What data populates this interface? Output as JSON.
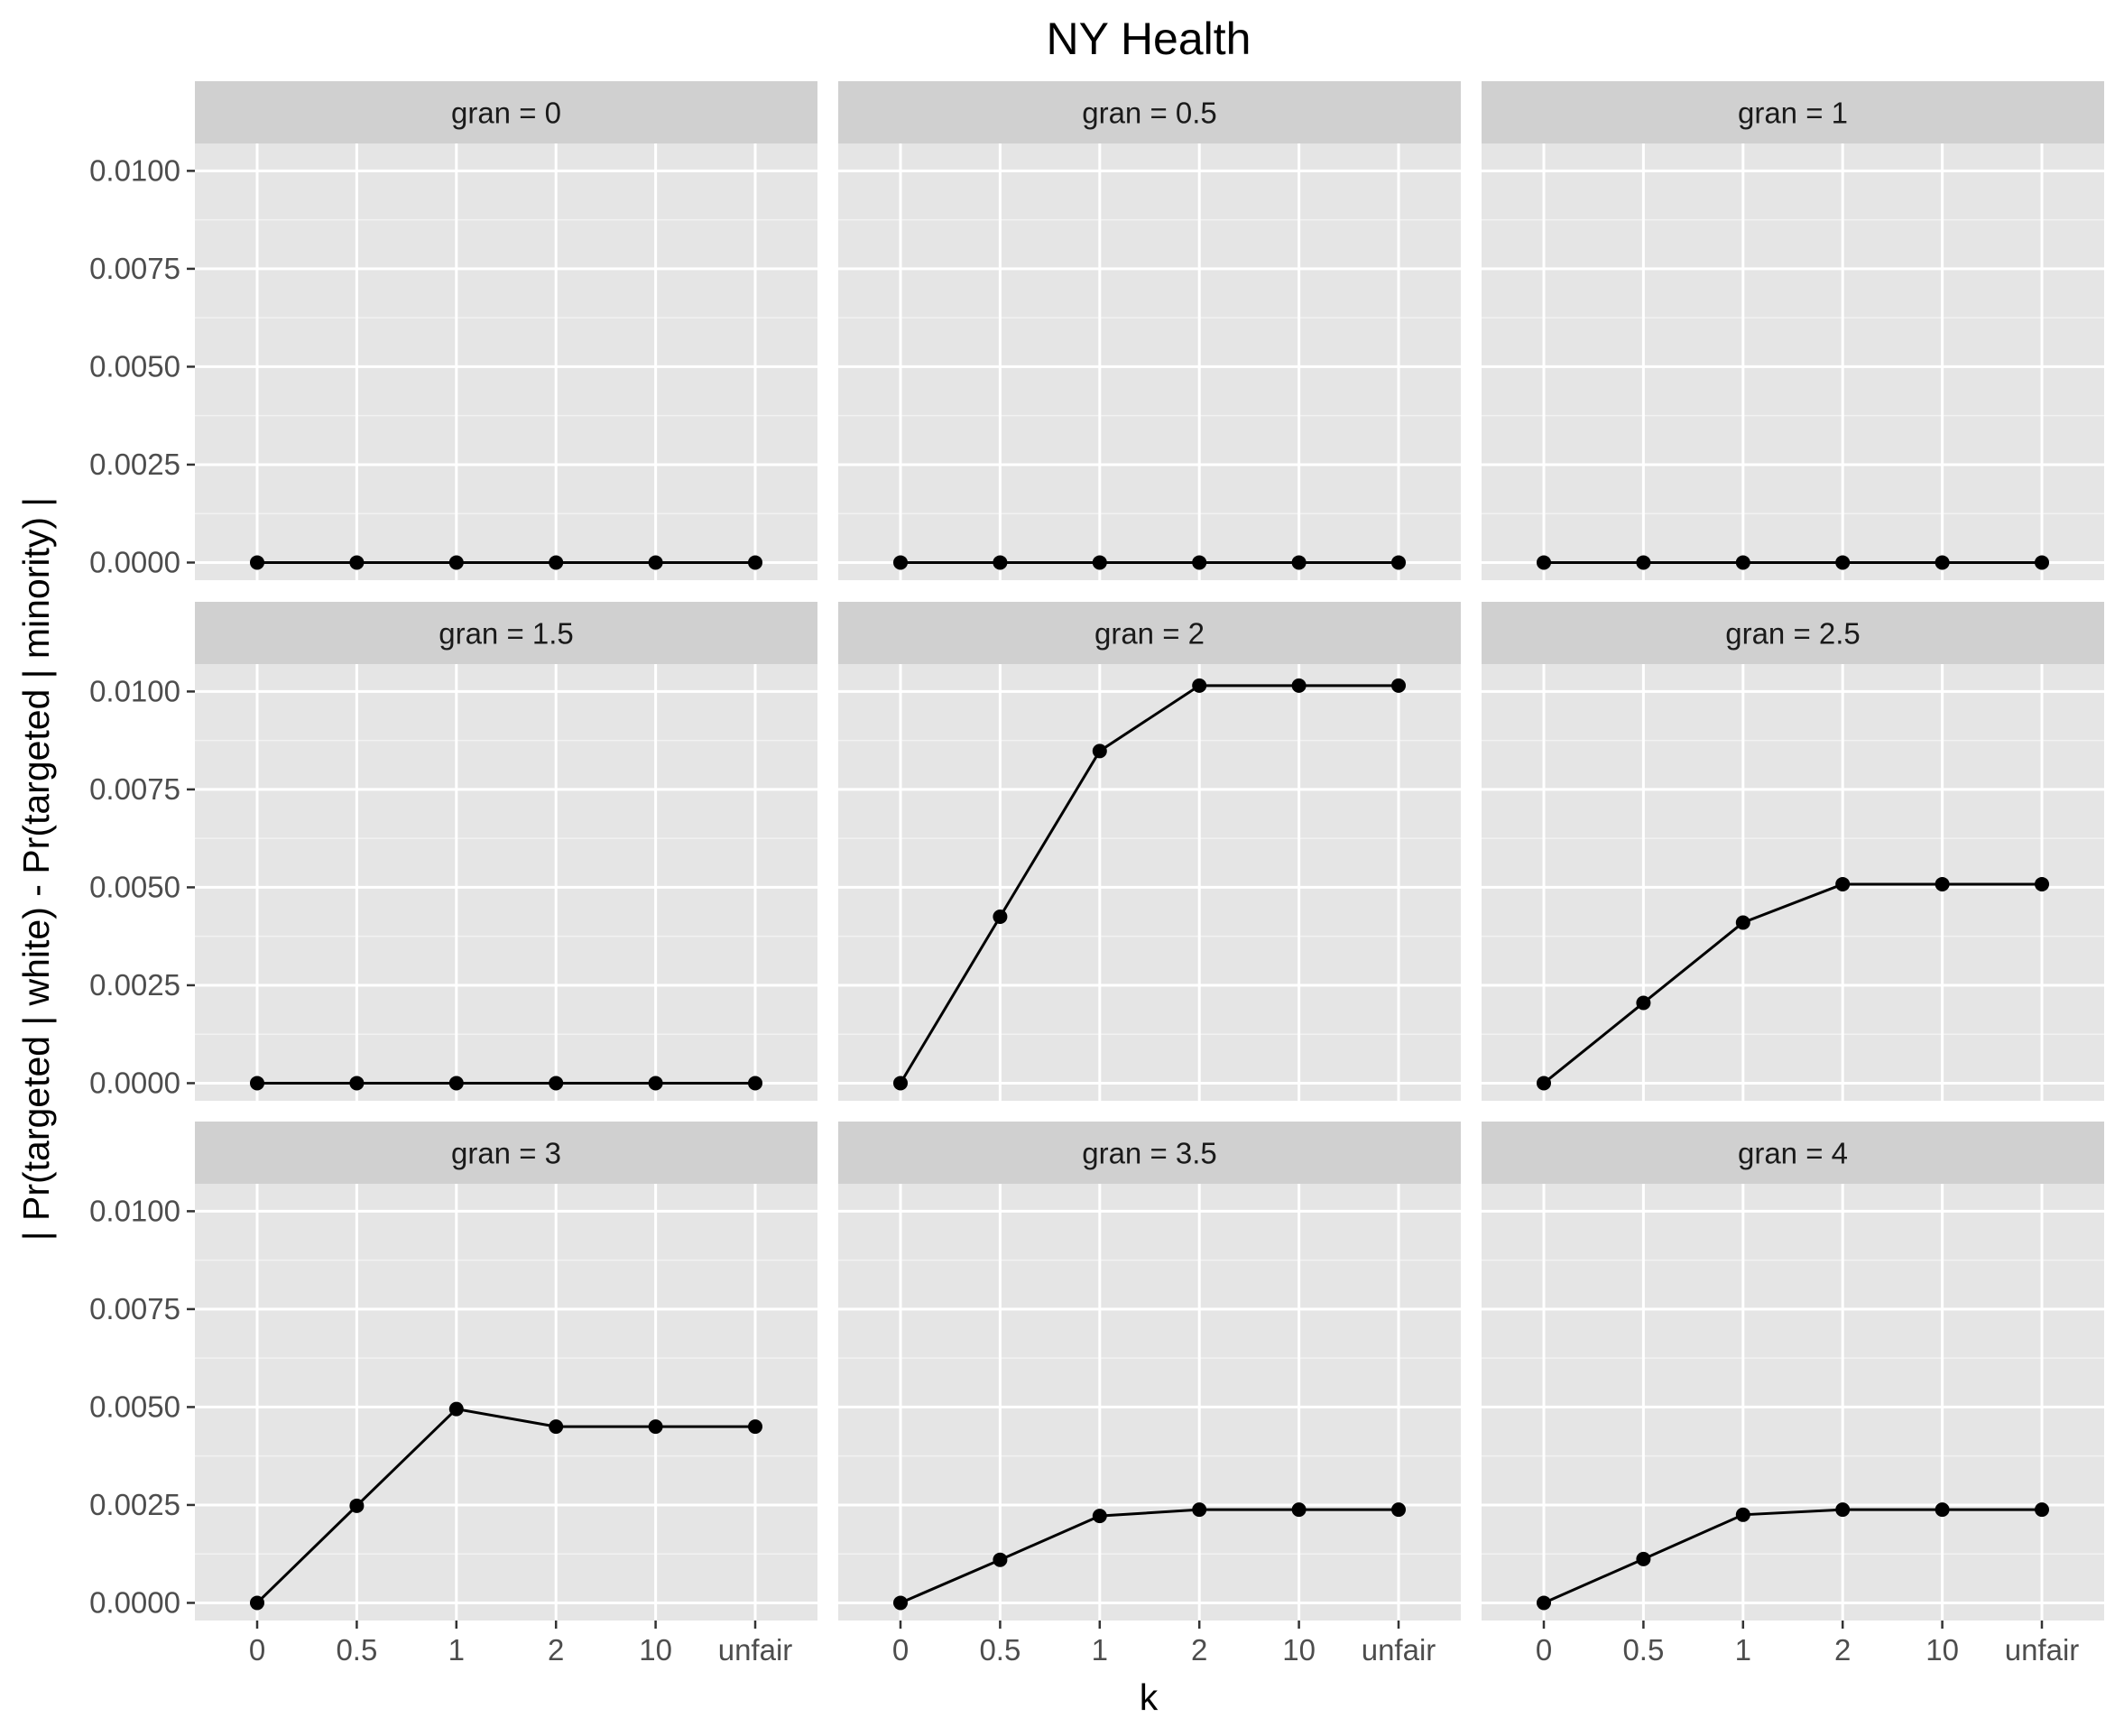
{
  "chart_data": {
    "type": "line",
    "title": "NY Health",
    "xlabel": "k",
    "ylabel": "| Pr(targeted | white) - Pr(targeted | minority) |",
    "x_categories": [
      "0",
      "0.5",
      "1",
      "2",
      "10",
      "unfair"
    ],
    "y_ticks": [
      "0.0000",
      "0.0025",
      "0.0050",
      "0.0075",
      "0.0100"
    ],
    "y_tick_values": [
      0,
      0.0025,
      0.005,
      0.0075,
      0.01
    ],
    "ylim": [
      -0.00045,
      0.0107
    ],
    "grid": true,
    "facets": [
      {
        "label": "gran =  0",
        "values": [
          0,
          0,
          0,
          0,
          0,
          0
        ]
      },
      {
        "label": "gran =  0.5",
        "values": [
          0,
          0,
          0,
          0,
          0,
          0
        ]
      },
      {
        "label": "gran =  1",
        "values": [
          0,
          0,
          0,
          0,
          0,
          0
        ]
      },
      {
        "label": "gran =  1.5",
        "values": [
          0,
          0,
          0,
          0,
          0,
          0
        ]
      },
      {
        "label": "gran =  2",
        "values": [
          0,
          0.00425,
          0.00848,
          0.01015,
          0.01015,
          0.01015
        ]
      },
      {
        "label": "gran =  2.5",
        "values": [
          0,
          0.00205,
          0.0041,
          0.00508,
          0.00508,
          0.00508
        ]
      },
      {
        "label": "gran =  3",
        "values": [
          0,
          0.00248,
          0.00495,
          0.0045,
          0.0045,
          0.0045
        ]
      },
      {
        "label": "gran =  3.5",
        "values": [
          0,
          0.0011,
          0.00222,
          0.00238,
          0.00238,
          0.00238
        ]
      },
      {
        "label": "gran =  4",
        "values": [
          0,
          0.00112,
          0.00225,
          0.00238,
          0.00238,
          0.00238
        ]
      }
    ],
    "colors": {
      "panel_background": "#e5e5e5",
      "strip_background": "#d0d0d0",
      "grid_major": "#ffffff",
      "grid_minor": "#f2f2f2",
      "line": "#000000",
      "point": "#000000"
    }
  }
}
